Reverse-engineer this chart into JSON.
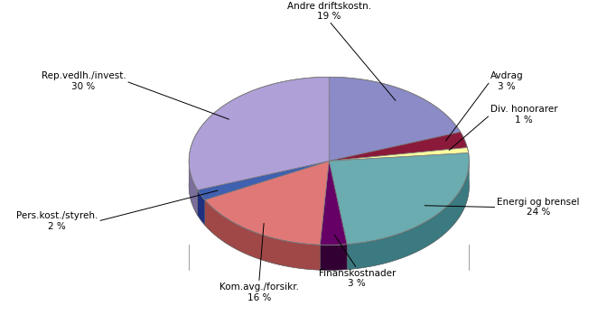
{
  "labels": [
    "Andre driftskostn.",
    "Avdrag",
    "Div. honorarer",
    "Energi og brensel",
    "Finanskostnader",
    "Kom.avg./forsikr.",
    "Pers.kost./styreh.",
    "Rep.vedlh./invest."
  ],
  "pcts": [
    "19 %",
    "3 %",
    "1 %",
    "24 %",
    "3 %",
    "16 %",
    "2 %",
    "30 %"
  ],
  "values": [
    19,
    3,
    1,
    24,
    3,
    16,
    2,
    30
  ],
  "colors": [
    "#8B8BC8",
    "#8B1A3A",
    "#FFFFA0",
    "#6AACB0",
    "#660066",
    "#E07878",
    "#4060B0",
    "#B0A0D8"
  ],
  "dark_colors": [
    "#5A5A90",
    "#5A0A20",
    "#AAAA60",
    "#3A7A80",
    "#330033",
    "#A04848",
    "#203080",
    "#7A6E9A"
  ],
  "startangle_deg": 90
}
